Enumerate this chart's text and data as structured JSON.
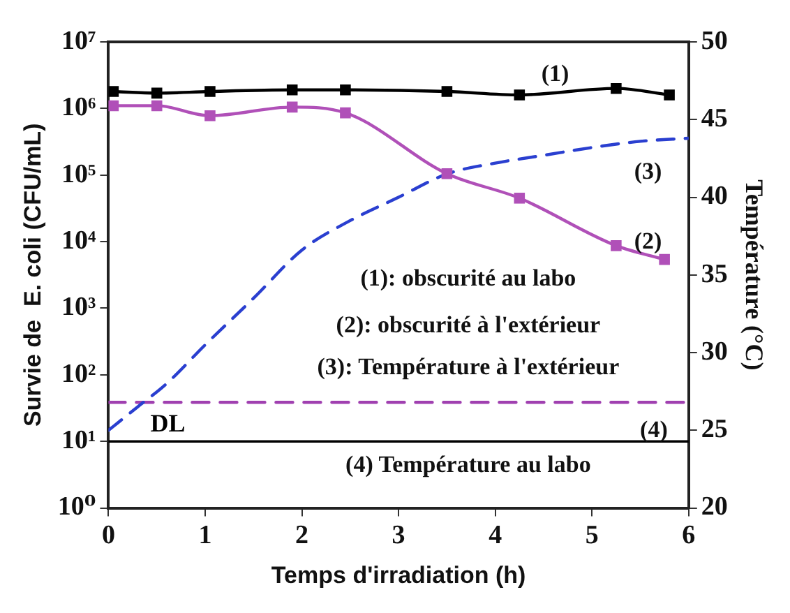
{
  "chart_data": {
    "type": "line",
    "xlabel": "Temps d'irradiation (h)",
    "ylabel": "Survie de  E. coli (CFU/mL)",
    "y2label": "Température (°C)",
    "xlim": [
      0,
      6
    ],
    "xticks": [
      0,
      1,
      2,
      3,
      4,
      5,
      6
    ],
    "log": "y",
    "ylim": [
      1,
      10000000
    ],
    "yticks": [
      {
        "value": 1,
        "label": "10⁰"
      },
      {
        "value": 10,
        "label": "10¹"
      },
      {
        "value": 100,
        "label": "10²"
      },
      {
        "value": 1000,
        "label": "10³"
      },
      {
        "value": 10000,
        "label": "10⁴"
      },
      {
        "value": 100000,
        "label": "10⁵"
      },
      {
        "value": 1000000,
        "label": "10⁶"
      },
      {
        "value": 10000000,
        "label": "10⁷"
      }
    ],
    "y2lim": [
      20,
      50
    ],
    "y2ticks": [
      20,
      25,
      30,
      35,
      40,
      45,
      50
    ],
    "grid": false,
    "legend": false,
    "series": [
      {
        "color": "#000000",
        "marker": "square",
        "line_style": "solid",
        "x": [
          0.05,
          0.5,
          1.05,
          1.9,
          2.45,
          3.5,
          4.25,
          5.25,
          5.8
        ],
        "values": [
          1800000,
          1700000,
          1800000,
          1900000,
          1900000,
          1800000,
          1600000,
          2000000,
          1600000
        ]
      },
      {
        "color": "#b050b8",
        "marker": "square",
        "line_style": "solid",
        "x": [
          0.05,
          0.5,
          1.05,
          1.9,
          2.45,
          3.5,
          4.25,
          5.25,
          5.75
        ],
        "values": [
          1100000,
          1100000,
          780000,
          1050000,
          860000,
          105000,
          45000,
          8700,
          5400
        ]
      },
      {
        "color": "#2a3fd0",
        "marker": "none",
        "line_style": "dashed",
        "axis": "y2",
        "x": [
          0,
          0.1,
          0.3,
          0.6,
          1,
          1.5,
          2,
          2.5,
          3,
          3.5,
          4,
          4.5,
          5,
          5.5,
          6
        ],
        "values": [
          25,
          25.5,
          26.5,
          28,
          30.5,
          33.5,
          36.6,
          38.5,
          40,
          41.5,
          42.2,
          42.7,
          43.2,
          43.6,
          43.8
        ]
      },
      {
        "color": "#a040b0",
        "marker": "none",
        "line_style": "dashed",
        "axis": "y2",
        "x": [
          0,
          6
        ],
        "values": [
          26.8,
          26.8
        ]
      }
    ],
    "ref_lines": [
      {
        "axis": "y",
        "value": 10,
        "label": "DL",
        "color": "#000000"
      }
    ],
    "annotations": [
      "(1)",
      "(2)",
      "(3)",
      "(4)",
      "(1): obscurité au labo",
      "(2): obscurité à l'extérieur",
      "(3): Température à l'extérieur",
      "(4) Température au labo"
    ]
  }
}
